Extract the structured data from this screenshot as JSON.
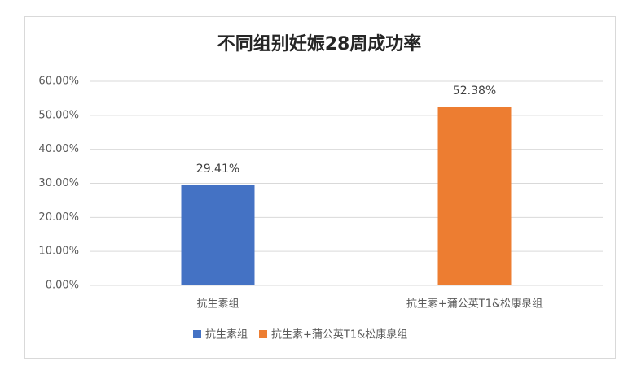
{
  "chart_data": {
    "type": "bar",
    "title": "不同组别妊娠28周成功率",
    "categories": [
      "抗生素组",
      "抗生素+蒲公英T1&松康泉组"
    ],
    "series": [
      {
        "name": "抗生素组",
        "color": "#4472c4",
        "values": [
          29.41,
          null
        ],
        "value_labels": [
          "29.41%",
          null
        ]
      },
      {
        "name": "抗生素+蒲公英T1&松康泉组",
        "color": "#ed7d31",
        "values": [
          null,
          52.38
        ],
        "value_labels": [
          null,
          "52.38%"
        ]
      }
    ],
    "ylim": [
      0,
      60
    ],
    "yticks": [
      {
        "value": 0,
        "label": "0.00%"
      },
      {
        "value": 10,
        "label": "10.00%"
      },
      {
        "value": 20,
        "label": "20.00%"
      },
      {
        "value": 30,
        "label": "30.00%"
      },
      {
        "value": 40,
        "label": "40.00%"
      },
      {
        "value": 50,
        "label": "50.00%"
      },
      {
        "value": 60,
        "label": "60.00%"
      }
    ],
    "grid": true,
    "legend": "bottom"
  }
}
